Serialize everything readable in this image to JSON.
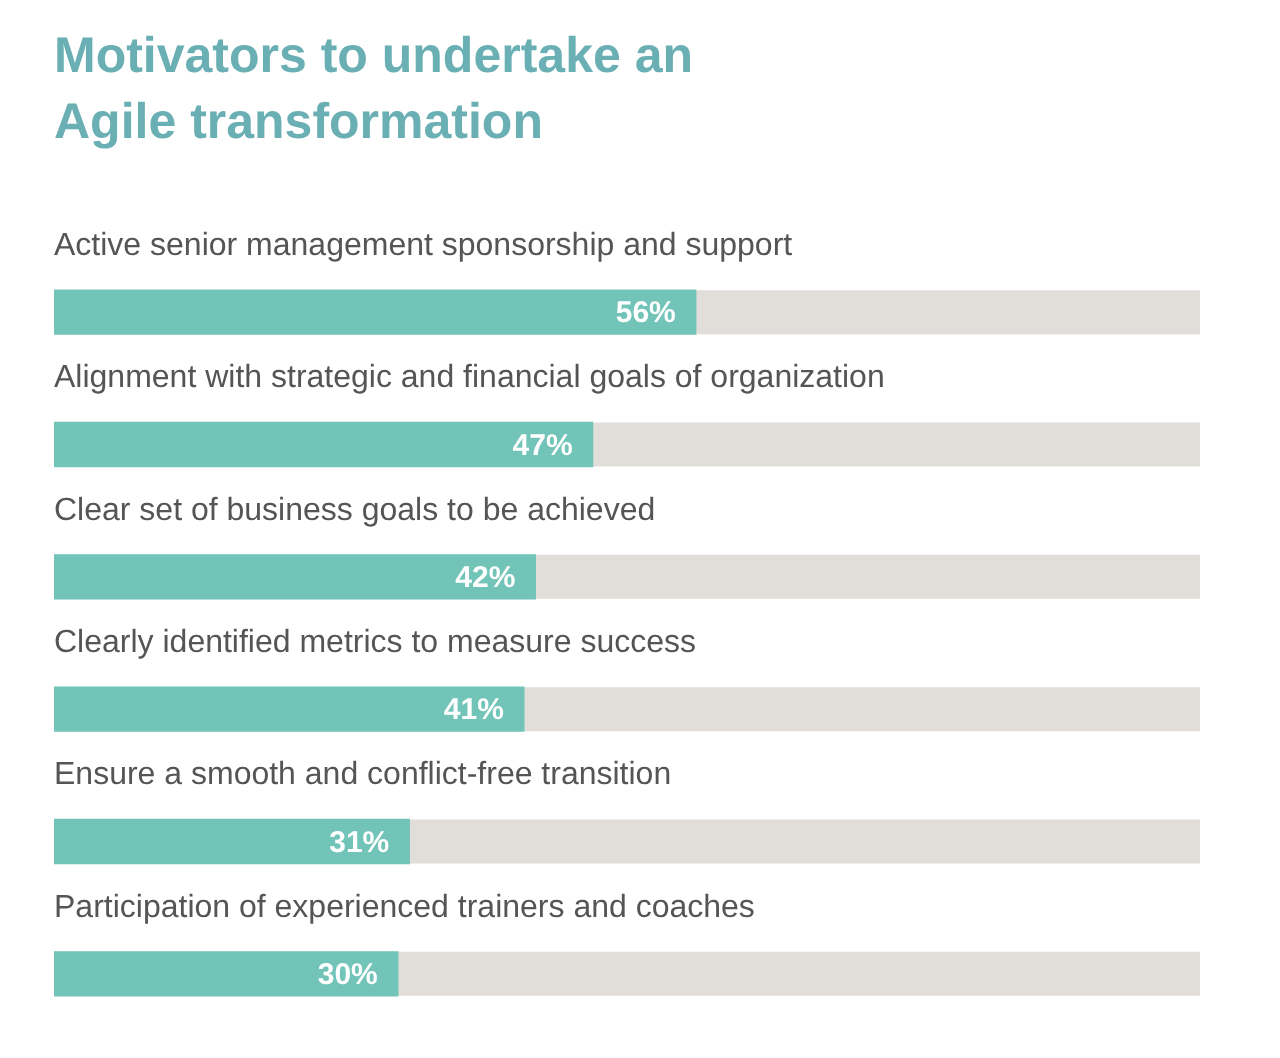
{
  "chart_data": {
    "type": "bar",
    "orientation": "horizontal",
    "title": "Motivators to undertake an Agile transformation",
    "categories": [
      "Active senior management sponsorship and support",
      "Alignment with strategic and financial goals of organization",
      "Clear set of business goals to be achieved",
      "Clearly identified metrics to measure success",
      "Ensure a smooth and conflict-free transition",
      "Participation of experienced trainers and coaches"
    ],
    "values": [
      56,
      47,
      42,
      41,
      31,
      30
    ],
    "value_labels": [
      "56%",
      "47%",
      "42%",
      "41%",
      "31%",
      "30%"
    ],
    "color": "#72c4b8",
    "xlim": [
      0,
      100
    ]
  }
}
